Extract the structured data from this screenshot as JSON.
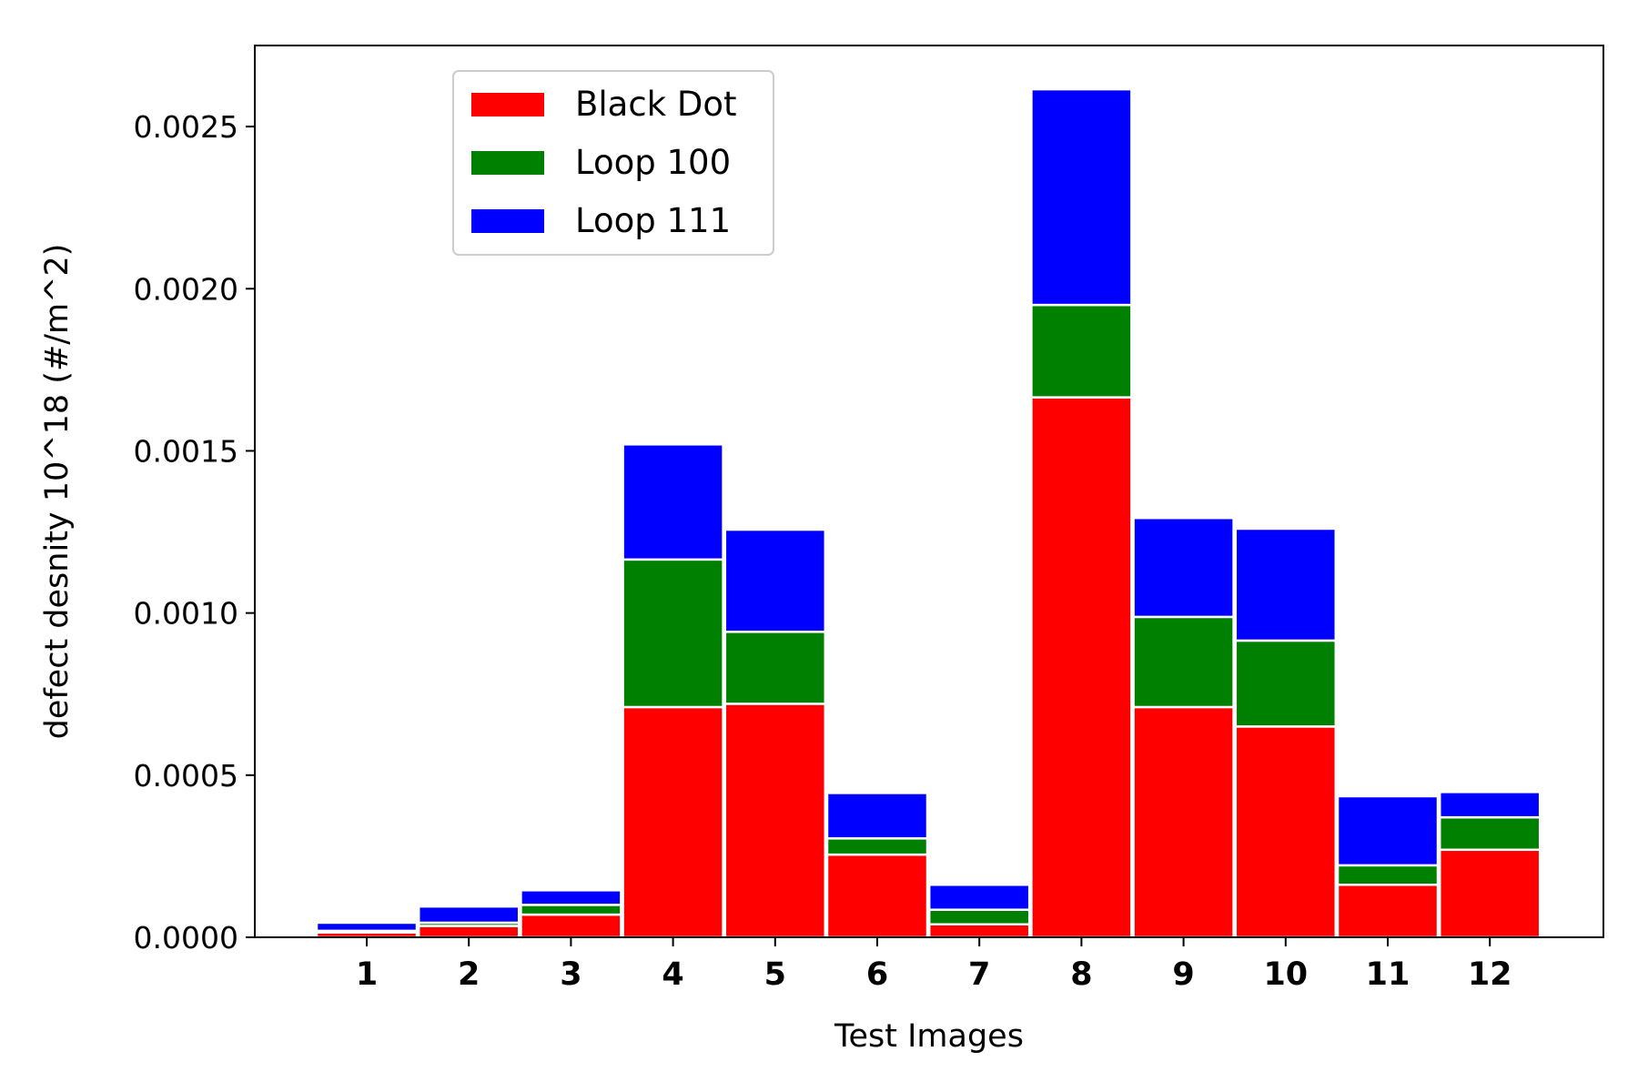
{
  "chart_data": {
    "type": "bar",
    "stacked": true,
    "title": "",
    "xlabel": "Test Images",
    "ylabel": "defect desnity 10^18 (#/m^2)",
    "categories": [
      "1",
      "2",
      "3",
      "4",
      "5",
      "6",
      "7",
      "8",
      "9",
      "10",
      "11",
      "12"
    ],
    "series": [
      {
        "name": "Black Dot",
        "color": "#ff0000",
        "values": [
          1.5e-05,
          3.5e-05,
          7e-05,
          0.00071,
          0.00072,
          0.000255,
          4e-05,
          0.001665,
          0.00071,
          0.00065,
          0.000162,
          0.00027
        ]
      },
      {
        "name": "Loop 100",
        "color": "#008000",
        "values": [
          5e-06,
          1e-05,
          3e-05,
          0.000455,
          0.000222,
          5e-05,
          4.5e-05,
          0.000285,
          0.000278,
          0.000265,
          6e-05,
          0.0001
        ]
      },
      {
        "name": "Loop 111",
        "color": "#0000ff",
        "values": [
          2.5e-05,
          5e-05,
          4.5e-05,
          0.000355,
          0.000315,
          0.00014,
          7.7e-05,
          0.000665,
          0.000305,
          0.000345,
          0.000213,
          7.8e-05
        ]
      }
    ],
    "ylim": [
      0,
      0.00275
    ],
    "yticks": [
      "0.0000",
      "0.0005",
      "0.0010",
      "0.0015",
      "0.0020",
      "0.0025"
    ],
    "ytick_values": [
      0,
      0.0005,
      0.001,
      0.0015,
      0.002,
      0.0025
    ],
    "grid": false,
    "legend_position": "top-left"
  }
}
